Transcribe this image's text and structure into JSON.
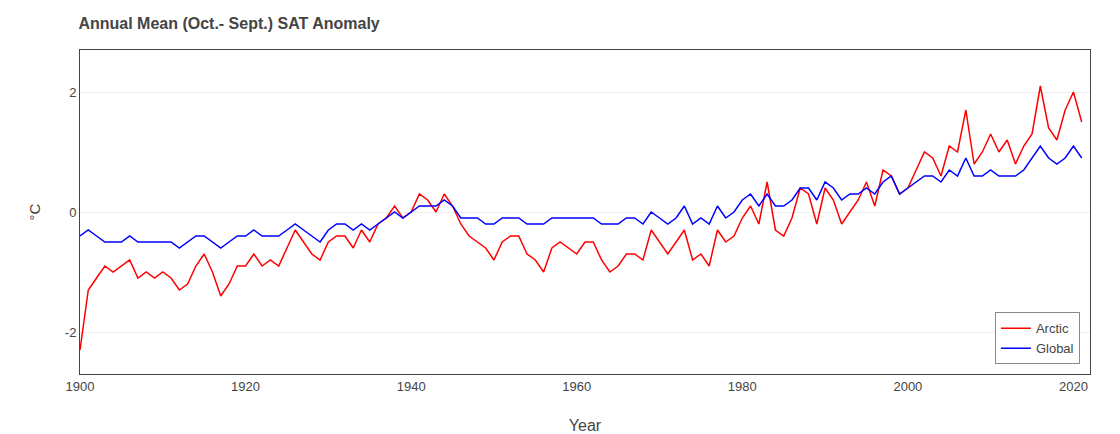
{
  "chart_data": {
    "type": "line",
    "title": "Annual Mean (Oct.- Sept.) SAT Anomaly",
    "xlabel": "Year",
    "ylabel": "°C",
    "x": [
      1900,
      1901,
      1902,
      1903,
      1904,
      1905,
      1906,
      1907,
      1908,
      1909,
      1910,
      1911,
      1912,
      1913,
      1914,
      1915,
      1916,
      1917,
      1918,
      1919,
      1920,
      1921,
      1922,
      1923,
      1924,
      1925,
      1926,
      1927,
      1928,
      1929,
      1930,
      1931,
      1932,
      1933,
      1934,
      1935,
      1936,
      1937,
      1938,
      1939,
      1940,
      1941,
      1942,
      1943,
      1944,
      1945,
      1946,
      1947,
      1948,
      1949,
      1950,
      1951,
      1952,
      1953,
      1954,
      1955,
      1956,
      1957,
      1958,
      1959,
      1960,
      1961,
      1962,
      1963,
      1964,
      1965,
      1966,
      1967,
      1968,
      1969,
      1970,
      1971,
      1972,
      1973,
      1974,
      1975,
      1976,
      1977,
      1978,
      1979,
      1980,
      1981,
      1982,
      1983,
      1984,
      1985,
      1986,
      1987,
      1988,
      1989,
      1990,
      1991,
      1992,
      1993,
      1994,
      1995,
      1996,
      1997,
      1998,
      1999,
      2000,
      2001,
      2002,
      2003,
      2004,
      2005,
      2006,
      2007,
      2008,
      2009,
      2010,
      2011,
      2012,
      2013,
      2014,
      2015,
      2016,
      2017,
      2018,
      2019,
      2020,
      2021
    ],
    "series": [
      {
        "name": "Arctic",
        "color": "#FF0000",
        "values": [
          -2.3,
          -1.3,
          -1.1,
          -0.9,
          -1.0,
          -0.9,
          -0.8,
          -1.1,
          -1.0,
          -1.1,
          -1.0,
          -1.1,
          -1.3,
          -1.2,
          -0.9,
          -0.7,
          -1.0,
          -1.4,
          -1.2,
          -0.9,
          -0.9,
          -0.7,
          -0.9,
          -0.8,
          -0.9,
          -0.6,
          -0.3,
          -0.5,
          -0.7,
          -0.8,
          -0.5,
          -0.4,
          -0.4,
          -0.6,
          -0.3,
          -0.5,
          -0.2,
          -0.1,
          0.1,
          -0.1,
          0.0,
          0.3,
          0.2,
          0.0,
          0.3,
          0.1,
          -0.2,
          -0.4,
          -0.5,
          -0.6,
          -0.8,
          -0.5,
          -0.4,
          -0.4,
          -0.7,
          -0.8,
          -1.0,
          -0.6,
          -0.5,
          -0.6,
          -0.7,
          -0.5,
          -0.5,
          -0.8,
          -1.0,
          -0.9,
          -0.7,
          -0.7,
          -0.8,
          -0.3,
          -0.5,
          -0.7,
          -0.5,
          -0.3,
          -0.8,
          -0.7,
          -0.9,
          -0.3,
          -0.5,
          -0.4,
          -0.1,
          0.1,
          -0.2,
          0.5,
          -0.3,
          -0.4,
          -0.1,
          0.4,
          0.3,
          -0.2,
          0.4,
          0.2,
          -0.2,
          0.0,
          0.2,
          0.5,
          0.1,
          0.7,
          0.6,
          0.3,
          0.4,
          0.7,
          1.0,
          0.9,
          0.6,
          1.1,
          1.0,
          1.7,
          0.8,
          1.0,
          1.3,
          1.0,
          1.2,
          0.8,
          1.1,
          1.3,
          2.1,
          1.4,
          1.2,
          1.7,
          2.0,
          1.5
        ]
      },
      {
        "name": "Global",
        "color": "#0000FF",
        "values": [
          -0.4,
          -0.3,
          -0.4,
          -0.5,
          -0.5,
          -0.5,
          -0.4,
          -0.5,
          -0.5,
          -0.5,
          -0.5,
          -0.5,
          -0.6,
          -0.5,
          -0.4,
          -0.4,
          -0.5,
          -0.6,
          -0.5,
          -0.4,
          -0.4,
          -0.3,
          -0.4,
          -0.4,
          -0.4,
          -0.3,
          -0.2,
          -0.3,
          -0.4,
          -0.5,
          -0.3,
          -0.2,
          -0.2,
          -0.3,
          -0.2,
          -0.3,
          -0.2,
          -0.1,
          0.0,
          -0.1,
          0.0,
          0.1,
          0.1,
          0.1,
          0.2,
          0.1,
          -0.1,
          -0.1,
          -0.1,
          -0.2,
          -0.2,
          -0.1,
          -0.1,
          -0.1,
          -0.2,
          -0.2,
          -0.2,
          -0.1,
          -0.1,
          -0.1,
          -0.1,
          -0.1,
          -0.1,
          -0.2,
          -0.2,
          -0.2,
          -0.1,
          -0.1,
          -0.2,
          0.0,
          -0.1,
          -0.2,
          -0.1,
          0.1,
          -0.2,
          -0.1,
          -0.2,
          0.1,
          -0.1,
          0.0,
          0.2,
          0.3,
          0.1,
          0.3,
          0.1,
          0.1,
          0.2,
          0.4,
          0.4,
          0.2,
          0.5,
          0.4,
          0.2,
          0.3,
          0.3,
          0.4,
          0.3,
          0.5,
          0.6,
          0.3,
          0.4,
          0.5,
          0.6,
          0.6,
          0.5,
          0.7,
          0.6,
          0.9,
          0.6,
          0.6,
          0.7,
          0.6,
          0.6,
          0.6,
          0.7,
          0.9,
          1.1,
          0.9,
          0.8,
          0.9,
          1.1,
          0.9
        ]
      }
    ],
    "xlim": [
      1900,
      2022
    ],
    "xticks": [
      1900,
      1920,
      1940,
      1960,
      1980,
      2000,
      2020
    ],
    "ylim": [
      -2.7,
      2.7
    ],
    "yticks": [
      -2,
      0,
      2
    ],
    "grid": true,
    "legend": "lower right"
  }
}
